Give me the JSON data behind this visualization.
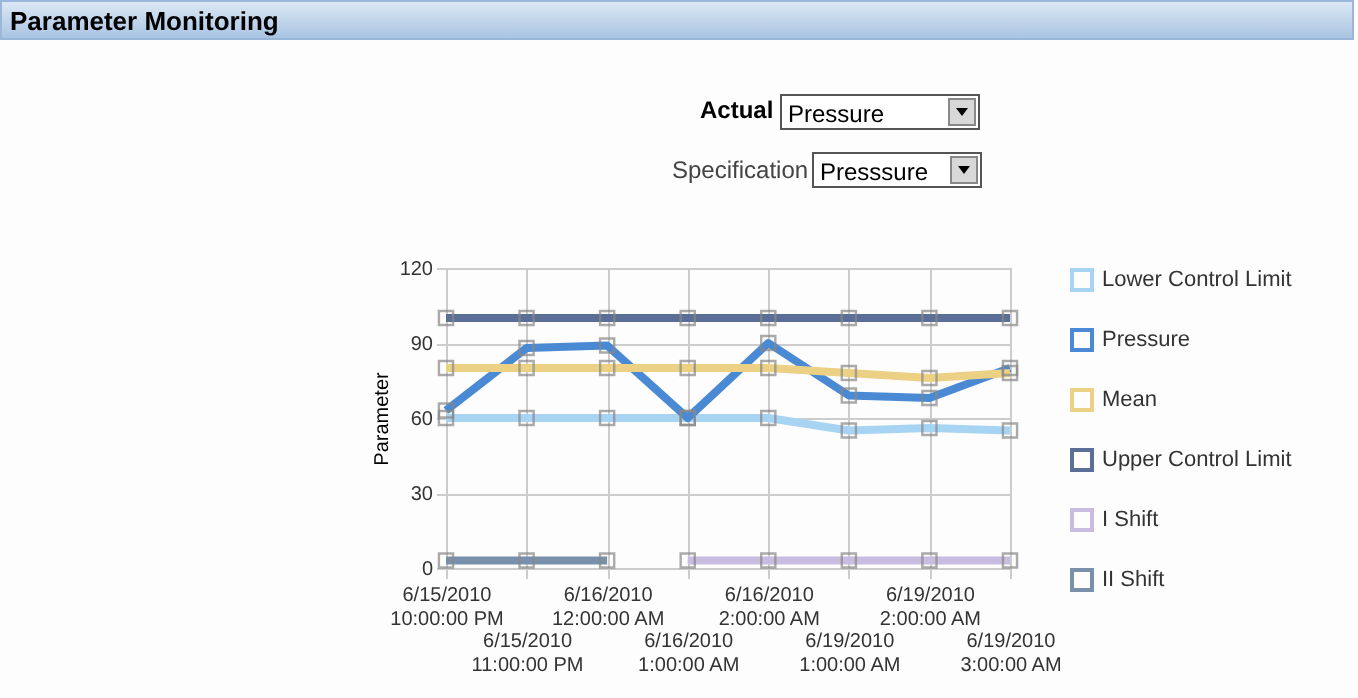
{
  "chart_data": {
    "type": "line",
    "title": "Parameter Monitoring",
    "ylabel": "Parameter",
    "annotations": [
      "Actual",
      "Pressure",
      "Specification",
      "Presssure"
    ],
    "categories": [
      "6/15/2010\n10:00:00 PM",
      "6/15/2010\n11:00:00 PM",
      "6/16/2010\n12:00:00 AM",
      "6/16/2010\n1:00:00 AM",
      "6/16/2010\n2:00:00 AM",
      "6/19/2010\n1:00:00 AM",
      "6/19/2010\n2:00:00 AM",
      "6/19/2010\n3:00:00 AM"
    ],
    "series": [
      {
        "name": "Lower Control Limit",
        "color": "#a8d4f4",
        "values": [
          60,
          60,
          60,
          60,
          60,
          55,
          56,
          55
        ]
      },
      {
        "name": "Pressure",
        "color": "#4a8ad4",
        "values": [
          63,
          88,
          89,
          60,
          90,
          69,
          68,
          80
        ]
      },
      {
        "name": "Mean",
        "color": "#ecd084",
        "values": [
          80,
          80,
          80,
          80,
          80,
          78,
          76,
          78
        ]
      },
      {
        "name": "Upper Control Limit",
        "color": "#5a6e98",
        "values": [
          100,
          100,
          100,
          100,
          100,
          100,
          100,
          100
        ]
      },
      {
        "name": "I Shift",
        "color": "#c8bce0",
        "values": [
          null,
          null,
          null,
          3,
          3,
          3,
          3,
          3
        ]
      },
      {
        "name": "II Shift",
        "color": "#7890aa",
        "values": [
          3,
          3,
          3,
          null,
          null,
          null,
          null,
          null
        ]
      }
    ],
    "ylim": [
      0,
      120
    ],
    "yticks": [
      0,
      30,
      60,
      90,
      120
    ],
    "grid": true,
    "legend": "right",
    "marker": "square",
    "line_style": "solid"
  }
}
